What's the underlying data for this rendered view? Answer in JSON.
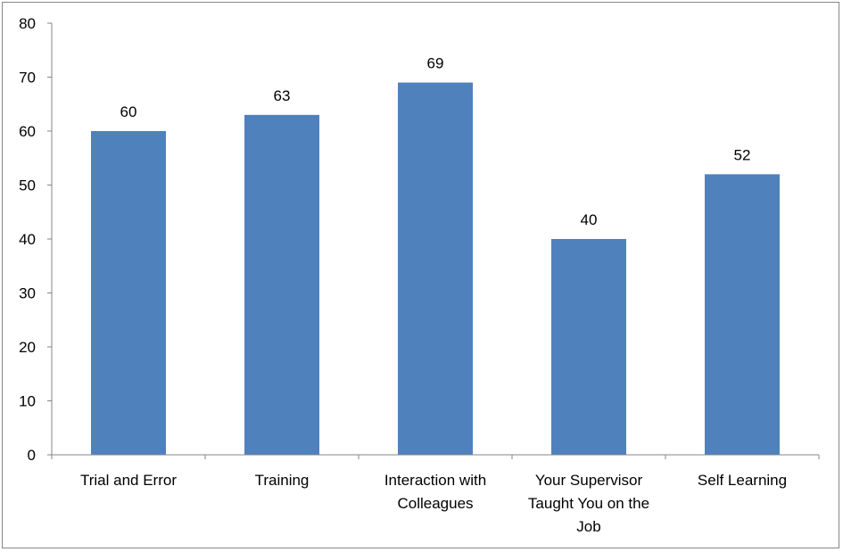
{
  "chart_data": {
    "type": "bar",
    "title": "",
    "xlabel": "",
    "ylabel": "",
    "categories": [
      [
        "Trial and Error"
      ],
      [
        "Training"
      ],
      [
        "Interaction with",
        "Colleagues"
      ],
      [
        "Your Supervisor",
        "Taught You on the",
        "Job"
      ],
      [
        "Self Learning"
      ]
    ],
    "series": [
      {
        "values": [
          60,
          63,
          69,
          40,
          52
        ]
      }
    ],
    "data_labels": [
      "60",
      "63",
      "69",
      "40",
      "52"
    ],
    "y_ticks": [
      "0",
      "10",
      "20",
      "30",
      "40",
      "50",
      "60",
      "70",
      "80"
    ],
    "ylim": [
      0,
      80
    ],
    "grid": false,
    "legend": "none",
    "colors": {
      "bar": "#4f81bd",
      "axis": "#868686",
      "text": "#000000"
    }
  }
}
